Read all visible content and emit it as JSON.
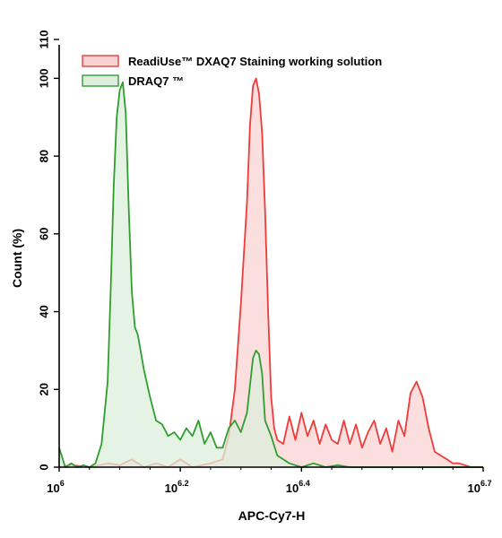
{
  "chart_data": {
    "type": "area",
    "xlabel": "APC-Cy7-H",
    "ylabel": "Count (%)",
    "x_scale": "log10",
    "xlim_log10": [
      6.0,
      6.7
    ],
    "ylim": [
      0,
      110
    ],
    "x_ticks": [
      {
        "base": "10",
        "exp": "6"
      },
      {
        "base": "10",
        "exp": "6.2"
      },
      {
        "base": "10",
        "exp": "6.4"
      },
      {
        "base": "10",
        "exp": "6.7"
      }
    ],
    "x_tick_values_log10": [
      6.0,
      6.2,
      6.4,
      6.7
    ],
    "y_ticks": [
      "0",
      "20",
      "40",
      "60",
      "80",
      "100",
      "110"
    ],
    "y_tick_values": [
      0,
      20,
      40,
      60,
      80,
      100,
      110
    ],
    "legend_position": "top-left",
    "series": [
      {
        "name": "ReadiUse™ DXAQ7 Staining working solution",
        "stroke": "#ee3b3b",
        "fill": "#f9d3d3",
        "x_log10": [
          6.0,
          6.02,
          6.05,
          6.08,
          6.1,
          6.12,
          6.14,
          6.16,
          6.18,
          6.2,
          6.22,
          6.25,
          6.27,
          6.28,
          6.29,
          6.3,
          6.31,
          6.315,
          6.32,
          6.325,
          6.33,
          6.335,
          6.34,
          6.345,
          6.35,
          6.355,
          6.36,
          6.37,
          6.38,
          6.39,
          6.4,
          6.41,
          6.42,
          6.43,
          6.44,
          6.45,
          6.46,
          6.47,
          6.48,
          6.49,
          6.5,
          6.51,
          6.52,
          6.53,
          6.54,
          6.55,
          6.56,
          6.57,
          6.58,
          6.59,
          6.6,
          6.61,
          6.62,
          6.63,
          6.64,
          6.65,
          6.66,
          6.67,
          6.68,
          6.7
        ],
        "y": [
          0,
          0.5,
          0,
          1,
          0.5,
          2,
          0,
          1,
          0,
          2,
          0,
          1,
          2,
          8,
          20,
          42,
          68,
          88,
          98,
          100,
          96,
          86,
          66,
          40,
          18,
          10,
          7,
          6,
          13,
          7,
          14,
          8,
          12,
          6,
          11,
          7,
          6,
          12,
          6,
          11,
          5,
          9,
          12,
          6,
          10,
          4,
          12,
          8,
          19,
          22,
          18,
          10,
          4,
          3,
          2,
          1,
          1,
          0.5,
          0,
          0
        ]
      },
      {
        "name": "DRAQ7 ™",
        "stroke": "#2f9e2f",
        "fill": "#dcefdc",
        "x_log10": [
          6.0,
          6.01,
          6.02,
          6.03,
          6.04,
          6.05,
          6.06,
          6.07,
          6.08,
          6.085,
          6.09,
          6.095,
          6.1,
          6.105,
          6.11,
          6.115,
          6.12,
          6.125,
          6.13,
          6.14,
          6.15,
          6.16,
          6.17,
          6.18,
          6.19,
          6.2,
          6.21,
          6.22,
          6.23,
          6.24,
          6.25,
          6.26,
          6.27,
          6.28,
          6.29,
          6.3,
          6.31,
          6.32,
          6.325,
          6.33,
          6.335,
          6.34,
          6.35,
          6.36,
          6.37,
          6.38,
          6.39,
          6.4,
          6.42,
          6.44,
          6.46,
          6.48,
          6.5,
          6.55,
          6.6,
          6.7
        ],
        "y": [
          5,
          0,
          1,
          0,
          0.5,
          0,
          1,
          6,
          22,
          45,
          72,
          90,
          97,
          99,
          91,
          66,
          45,
          36,
          34,
          25,
          18,
          12,
          11,
          8,
          9,
          7,
          10,
          8,
          12,
          6,
          9,
          5,
          5,
          10,
          12,
          9,
          14,
          28,
          30,
          29,
          24,
          12,
          8,
          3,
          2,
          1,
          0.5,
          0,
          1,
          0,
          0.5,
          0,
          0,
          0,
          0,
          0
        ]
      }
    ]
  }
}
